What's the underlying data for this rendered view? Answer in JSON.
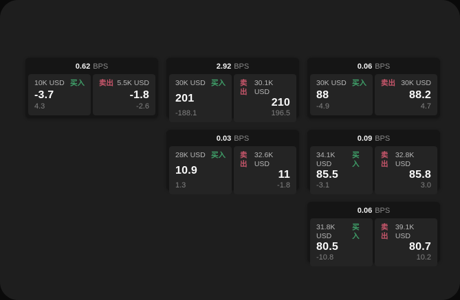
{
  "labels": {
    "buy": "买入",
    "sell": "卖出",
    "bps_unit": "BPS"
  },
  "colors": {
    "buy_green": "#3f9e68",
    "sell_red": "#c8566b",
    "panel_bg": "#1e1e1e",
    "card_bg": "#151515",
    "tile_bg": "#242424"
  },
  "cards": [
    {
      "bps": "0.62",
      "buy": {
        "amount": "10K USD",
        "price": "-3.7",
        "delta": "4.3"
      },
      "sell": {
        "amount": "5.5K USD",
        "price": "-1.8",
        "delta": "-2.6"
      }
    },
    {
      "bps": "2.92",
      "buy": {
        "amount": "30K USD",
        "price": "201",
        "delta": "-188.1"
      },
      "sell": {
        "amount": "30.1K USD",
        "price": "210",
        "delta": "196.5"
      }
    },
    {
      "bps": "0.06",
      "buy": {
        "amount": "30K USD",
        "price": "88",
        "delta": "-4.9"
      },
      "sell": {
        "amount": "30K USD",
        "price": "88.2",
        "delta": "4.7"
      }
    },
    {
      "bps": "0.03",
      "buy": {
        "amount": "28K USD",
        "price": "10.9",
        "delta": "1.3"
      },
      "sell": {
        "amount": "32.6K USD",
        "price": "11",
        "delta": "-1.8"
      }
    },
    {
      "bps": "0.09",
      "buy": {
        "amount": "34.1K USD",
        "price": "85.5",
        "delta": "-3.1"
      },
      "sell": {
        "amount": "32.8K USD",
        "price": "85.8",
        "delta": "3.0"
      }
    },
    {
      "bps": "0.06",
      "buy": {
        "amount": "31.8K USD",
        "price": "80.5",
        "delta": "-10.8"
      },
      "sell": {
        "amount": "39.1K USD",
        "price": "80.7",
        "delta": "10.2"
      }
    }
  ]
}
